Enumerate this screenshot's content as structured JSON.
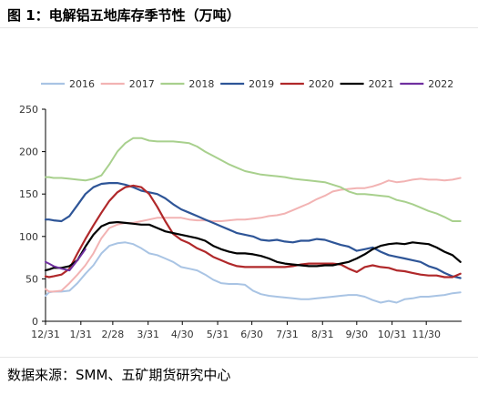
{
  "header": {
    "title": "图 1：电解铝五地库存季节性（万吨）"
  },
  "footer": {
    "source": "数据来源：SMM、五矿期货研究中心"
  },
  "chart_data": {
    "type": "line",
    "title": "",
    "xlabel": "",
    "ylabel": "",
    "ylim": [
      0,
      250
    ],
    "yticks": [
      0,
      50,
      100,
      150,
      200,
      250
    ],
    "xticks": [
      "12/31",
      "1/31",
      "2/28",
      "3/31",
      "4/30",
      "5/31",
      "6/30",
      "7/31",
      "8/31",
      "9/30",
      "10/31",
      "11/30"
    ],
    "xtick_days": [
      0,
      31,
      59,
      90,
      120,
      151,
      181,
      212,
      243,
      273,
      304,
      334
    ],
    "xlim_days": [
      0,
      365
    ],
    "legend_position": "top",
    "grid": false,
    "series": [
      {
        "name": "2016",
        "color": "#a9c4e4",
        "x": [
          0,
          3,
          7,
          14,
          21,
          28,
          35,
          42,
          49,
          56,
          63,
          70,
          77,
          84,
          91,
          98,
          105,
          112,
          119,
          126,
          133,
          140,
          147,
          154,
          161,
          168,
          175,
          182,
          189,
          196,
          203,
          210,
          217,
          224,
          231,
          238,
          245,
          252,
          259,
          266,
          273,
          280,
          287,
          294,
          301,
          308,
          315,
          322,
          329,
          336,
          343,
          350,
          357,
          364
        ],
        "y": [
          30,
          34,
          35,
          35,
          36,
          45,
          56,
          66,
          80,
          89,
          92,
          93,
          91,
          86,
          80,
          78,
          74,
          70,
          64,
          62,
          60,
          55,
          49,
          45,
          44,
          44,
          43,
          36,
          32,
          30,
          29,
          28,
          27,
          26,
          26,
          27,
          28,
          29,
          30,
          31,
          31,
          29,
          25,
          22,
          24,
          22,
          26,
          27,
          29,
          29,
          30,
          31,
          33,
          34
        ]
      },
      {
        "name": "2017",
        "color": "#f2b3b3",
        "x": [
          0,
          3,
          7,
          14,
          21,
          28,
          35,
          42,
          49,
          56,
          63,
          70,
          77,
          84,
          91,
          98,
          105,
          112,
          119,
          126,
          133,
          140,
          147,
          154,
          161,
          168,
          175,
          182,
          189,
          196,
          203,
          210,
          217,
          224,
          231,
          238,
          245,
          252,
          259,
          266,
          273,
          280,
          287,
          294,
          301,
          308,
          315,
          322,
          329,
          336,
          343,
          350,
          357,
          364
        ],
        "y": [
          38,
          35,
          35,
          36,
          45,
          55,
          66,
          80,
          98,
          110,
          114,
          116,
          116,
          118,
          120,
          122,
          122,
          122,
          122,
          120,
          119,
          119,
          118,
          118,
          119,
          120,
          120,
          121,
          122,
          124,
          125,
          127,
          131,
          135,
          139,
          144,
          148,
          153,
          155,
          156,
          157,
          157,
          159,
          162,
          166,
          164,
          165,
          167,
          168,
          167,
          167,
          166,
          167,
          169
        ]
      },
      {
        "name": "2018",
        "color": "#a8d08d",
        "x": [
          0,
          3,
          7,
          14,
          21,
          28,
          35,
          42,
          49,
          56,
          63,
          70,
          77,
          84,
          91,
          98,
          105,
          112,
          119,
          126,
          133,
          140,
          147,
          154,
          161,
          168,
          175,
          182,
          189,
          196,
          203,
          210,
          217,
          224,
          231,
          238,
          245,
          252,
          259,
          266,
          273,
          280,
          287,
          294,
          301,
          308,
          315,
          322,
          329,
          336,
          343,
          350,
          357,
          364
        ],
        "y": [
          170,
          170,
          169,
          169,
          168,
          167,
          166,
          168,
          172,
          185,
          200,
          210,
          216,
          216,
          213,
          212,
          212,
          212,
          211,
          210,
          206,
          200,
          195,
          190,
          185,
          181,
          177,
          175,
          173,
          172,
          171,
          170,
          168,
          167,
          166,
          165,
          164,
          161,
          158,
          153,
          150,
          150,
          149,
          148,
          147,
          143,
          141,
          138,
          134,
          130,
          127,
          123,
          118,
          118
        ]
      },
      {
        "name": "2019",
        "color": "#2e5597",
        "x": [
          0,
          3,
          7,
          14,
          21,
          28,
          35,
          42,
          49,
          56,
          63,
          70,
          77,
          84,
          91,
          98,
          105,
          112,
          119,
          126,
          133,
          140,
          147,
          154,
          161,
          168,
          175,
          182,
          189,
          196,
          203,
          210,
          217,
          224,
          231,
          238,
          245,
          252,
          259,
          266,
          273,
          280,
          287,
          294,
          301,
          308,
          315,
          322,
          329,
          336,
          343,
          350,
          357,
          364
        ],
        "y": [
          120,
          120,
          119,
          118,
          124,
          137,
          150,
          158,
          162,
          163,
          163,
          161,
          158,
          154,
          152,
          150,
          145,
          138,
          132,
          128,
          124,
          120,
          116,
          112,
          108,
          104,
          102,
          100,
          96,
          95,
          96,
          94,
          93,
          95,
          95,
          97,
          96,
          93,
          90,
          88,
          83,
          85,
          87,
          82,
          78,
          76,
          74,
          72,
          70,
          65,
          62,
          57,
          53,
          51
        ]
      },
      {
        "name": "2020",
        "color": "#b0282a",
        "x": [
          0,
          3,
          7,
          14,
          21,
          28,
          35,
          42,
          49,
          56,
          63,
          70,
          77,
          84,
          91,
          98,
          105,
          112,
          119,
          126,
          133,
          140,
          147,
          154,
          161,
          168,
          175,
          182,
          189,
          196,
          203,
          210,
          217,
          224,
          231,
          238,
          245,
          252,
          259,
          266,
          273,
          280,
          287,
          294,
          301,
          308,
          315,
          322,
          329,
          336,
          343,
          350,
          357,
          364
        ],
        "y": [
          53,
          52,
          53,
          55,
          62,
          80,
          97,
          113,
          128,
          142,
          152,
          158,
          160,
          158,
          150,
          135,
          118,
          103,
          96,
          92,
          86,
          82,
          76,
          72,
          68,
          65,
          64,
          64,
          64,
          64,
          64,
          64,
          65,
          67,
          68,
          68,
          68,
          68,
          67,
          62,
          58,
          64,
          66,
          64,
          63,
          60,
          59,
          57,
          55,
          54,
          54,
          52,
          52,
          56
        ]
      },
      {
        "name": "2021",
        "color": "#000000",
        "x": [
          0,
          3,
          7,
          14,
          21,
          28,
          35,
          42,
          49,
          56,
          63,
          70,
          77,
          84,
          91,
          98,
          105,
          112,
          119,
          126,
          133,
          140,
          147,
          154,
          161,
          168,
          175,
          182,
          189,
          196,
          203,
          210,
          217,
          224,
          231,
          238,
          245,
          252,
          259,
          266,
          273,
          280,
          287,
          294,
          301,
          308,
          315,
          322,
          329,
          336,
          343,
          350,
          357,
          364
        ],
        "y": [
          60,
          61,
          63,
          63,
          65,
          72,
          88,
          102,
          112,
          116,
          117,
          116,
          115,
          114,
          114,
          110,
          106,
          104,
          102,
          100,
          98,
          95,
          89,
          85,
          82,
          80,
          80,
          79,
          77,
          74,
          70,
          68,
          67,
          66,
          65,
          65,
          66,
          66,
          68,
          70,
          74,
          79,
          85,
          89,
          91,
          92,
          91,
          93,
          92,
          91,
          87,
          82,
          78,
          70
        ]
      },
      {
        "name": "2022",
        "color": "#7030a0",
        "x": [
          0,
          3,
          7,
          14,
          21,
          28,
          35
        ],
        "y": [
          70,
          68,
          65,
          62,
          60,
          72,
          85
        ]
      }
    ]
  }
}
